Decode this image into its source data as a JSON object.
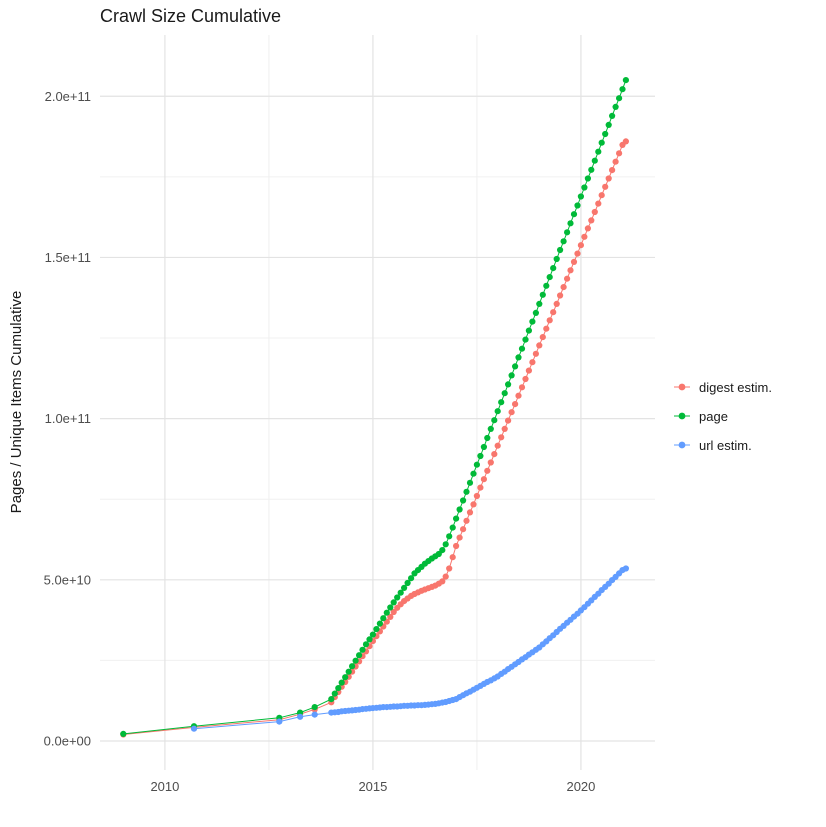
{
  "chart": {
    "title": "Crawl Size Cumulative",
    "ylabel": "Pages / Unique Items Cumulative",
    "xlabel": ""
  },
  "chart_data": {
    "type": "scatter",
    "note": "cumulative crawl size over time; y values stored in units of 1e9 items",
    "grid": true,
    "legend_position": "right",
    "xlim": [
      2008.44,
      2021.78
    ],
    "ylim_e9": [
      -9,
      219
    ],
    "x_ticks": [
      {
        "v": 2010,
        "label": "2010"
      },
      {
        "v": 2015,
        "label": "2015"
      },
      {
        "v": 2020,
        "label": "2020"
      }
    ],
    "x_minor": [
      2012.5,
      2017.5
    ],
    "y_ticks": [
      {
        "v": 0,
        "label": "0.0e+00"
      },
      {
        "v": 50,
        "label": "5.0e+10"
      },
      {
        "v": 100,
        "label": "1.0e+11"
      },
      {
        "v": 150,
        "label": "1.5e+11"
      },
      {
        "v": 200,
        "label": "2.0e+11"
      }
    ],
    "y_minor": [
      25,
      75,
      125,
      175
    ],
    "series": [
      {
        "id": "digest-estim",
        "name": "digest estim.",
        "color": "#F8766D",
        "points": [
          [
            2009.0,
            2.0
          ],
          [
            2010.7,
            4.2
          ],
          [
            2012.75,
            6.6
          ],
          [
            2013.25,
            8.3
          ],
          [
            2013.6,
            9.8
          ],
          [
            2014.0,
            12.0
          ],
          [
            2014.083,
            13.6
          ],
          [
            2014.167,
            15.2
          ],
          [
            2014.25,
            16.8
          ],
          [
            2014.333,
            18.3
          ],
          [
            2014.417,
            19.9
          ],
          [
            2014.5,
            21.5
          ],
          [
            2014.583,
            23.1
          ],
          [
            2014.667,
            24.7
          ],
          [
            2014.75,
            26.3
          ],
          [
            2014.833,
            27.8
          ],
          [
            2014.917,
            29.4
          ],
          [
            2015.0,
            31.0
          ],
          [
            2015.083,
            32.5
          ],
          [
            2015.167,
            34.0
          ],
          [
            2015.25,
            35.5
          ],
          [
            2015.333,
            37.0
          ],
          [
            2015.417,
            38.5
          ],
          [
            2015.5,
            40.0
          ],
          [
            2015.583,
            41.3
          ],
          [
            2015.667,
            42.4
          ],
          [
            2015.75,
            43.4
          ],
          [
            2015.833,
            44.2
          ],
          [
            2015.917,
            45.0
          ],
          [
            2016.0,
            45.6
          ],
          [
            2016.083,
            46.1
          ],
          [
            2016.167,
            46.6
          ],
          [
            2016.25,
            47.0
          ],
          [
            2016.333,
            47.4
          ],
          [
            2016.417,
            47.8
          ],
          [
            2016.5,
            48.2
          ],
          [
            2016.583,
            48.8
          ],
          [
            2016.667,
            49.5
          ],
          [
            2016.75,
            51.0
          ],
          [
            2016.833,
            53.5
          ],
          [
            2016.917,
            57.0
          ],
          [
            2017.0,
            60.5
          ],
          [
            2017.083,
            63.1
          ],
          [
            2017.167,
            65.7
          ],
          [
            2017.25,
            68.3
          ],
          [
            2017.333,
            70.9
          ],
          [
            2017.417,
            73.4
          ],
          [
            2017.5,
            76.0
          ],
          [
            2017.583,
            78.6
          ],
          [
            2017.667,
            81.2
          ],
          [
            2017.75,
            83.8
          ],
          [
            2017.833,
            86.4
          ],
          [
            2017.917,
            89.0
          ],
          [
            2018.0,
            91.6
          ],
          [
            2018.083,
            94.2
          ],
          [
            2018.167,
            96.8
          ],
          [
            2018.25,
            99.4
          ],
          [
            2018.333,
            102.0
          ],
          [
            2018.417,
            104.5
          ],
          [
            2018.5,
            107.1
          ],
          [
            2018.583,
            109.7
          ],
          [
            2018.667,
            112.3
          ],
          [
            2018.75,
            114.9
          ],
          [
            2018.833,
            117.5
          ],
          [
            2018.917,
            120.1
          ],
          [
            2019.0,
            122.7
          ],
          [
            2019.083,
            125.3
          ],
          [
            2019.167,
            127.9
          ],
          [
            2019.25,
            130.5
          ],
          [
            2019.333,
            133.0
          ],
          [
            2019.417,
            135.6
          ],
          [
            2019.5,
            138.2
          ],
          [
            2019.583,
            140.8
          ],
          [
            2019.667,
            143.4
          ],
          [
            2019.75,
            146.0
          ],
          [
            2019.833,
            148.6
          ],
          [
            2019.917,
            151.2
          ],
          [
            2020.0,
            153.8
          ],
          [
            2020.083,
            156.4
          ],
          [
            2020.167,
            159.0
          ],
          [
            2020.25,
            161.5
          ],
          [
            2020.333,
            164.1
          ],
          [
            2020.417,
            166.7
          ],
          [
            2020.5,
            169.3
          ],
          [
            2020.583,
            171.9
          ],
          [
            2020.667,
            174.5
          ],
          [
            2020.75,
            177.1
          ],
          [
            2020.833,
            179.7
          ],
          [
            2020.917,
            182.3
          ],
          [
            2021.0,
            184.9
          ],
          [
            2021.08,
            186.0
          ]
        ]
      },
      {
        "id": "page",
        "name": "page",
        "color": "#00BA38",
        "points": [
          [
            2009.0,
            2.2
          ],
          [
            2010.7,
            4.6
          ],
          [
            2012.75,
            7.2
          ],
          [
            2013.25,
            8.8
          ],
          [
            2013.6,
            10.5
          ],
          [
            2014.0,
            13.0
          ],
          [
            2014.083,
            14.7
          ],
          [
            2014.167,
            16.4
          ],
          [
            2014.25,
            18.1
          ],
          [
            2014.333,
            19.8
          ],
          [
            2014.417,
            21.5
          ],
          [
            2014.5,
            23.2
          ],
          [
            2014.583,
            24.9
          ],
          [
            2014.667,
            26.6
          ],
          [
            2014.75,
            28.3
          ],
          [
            2014.833,
            30.0
          ],
          [
            2014.917,
            31.5
          ],
          [
            2015.0,
            33.0
          ],
          [
            2015.083,
            34.7
          ],
          [
            2015.167,
            36.4
          ],
          [
            2015.25,
            38.1
          ],
          [
            2015.333,
            39.8
          ],
          [
            2015.417,
            41.4
          ],
          [
            2015.5,
            43.0
          ],
          [
            2015.583,
            44.5
          ],
          [
            2015.667,
            46.0
          ],
          [
            2015.75,
            47.5
          ],
          [
            2015.833,
            49.0
          ],
          [
            2015.917,
            50.5
          ],
          [
            2016.0,
            52.0
          ],
          [
            2016.083,
            53.0
          ],
          [
            2016.167,
            54.0
          ],
          [
            2016.25,
            55.0
          ],
          [
            2016.333,
            55.8
          ],
          [
            2016.417,
            56.6
          ],
          [
            2016.5,
            57.3
          ],
          [
            2016.583,
            58.0
          ],
          [
            2016.667,
            59.2
          ],
          [
            2016.75,
            61.0
          ],
          [
            2016.833,
            63.5
          ],
          [
            2016.917,
            66.2
          ],
          [
            2017.0,
            69.0
          ],
          [
            2017.083,
            71.8
          ],
          [
            2017.167,
            74.6
          ],
          [
            2017.25,
            77.3
          ],
          [
            2017.333,
            80.1
          ],
          [
            2017.417,
            82.9
          ],
          [
            2017.5,
            85.7
          ],
          [
            2017.583,
            88.4
          ],
          [
            2017.667,
            91.2
          ],
          [
            2017.75,
            94.0
          ],
          [
            2017.833,
            96.8
          ],
          [
            2017.917,
            99.5
          ],
          [
            2018.0,
            102.3
          ],
          [
            2018.083,
            105.1
          ],
          [
            2018.167,
            107.9
          ],
          [
            2018.25,
            110.6
          ],
          [
            2018.333,
            113.4
          ],
          [
            2018.417,
            116.2
          ],
          [
            2018.5,
            119.0
          ],
          [
            2018.583,
            121.7
          ],
          [
            2018.667,
            124.5
          ],
          [
            2018.75,
            127.3
          ],
          [
            2018.833,
            130.1
          ],
          [
            2018.917,
            132.8
          ],
          [
            2019.0,
            135.6
          ],
          [
            2019.083,
            138.4
          ],
          [
            2019.167,
            141.2
          ],
          [
            2019.25,
            143.9
          ],
          [
            2019.333,
            146.7
          ],
          [
            2019.417,
            149.5
          ],
          [
            2019.5,
            152.3
          ],
          [
            2019.583,
            155.0
          ],
          [
            2019.667,
            157.8
          ],
          [
            2019.75,
            160.6
          ],
          [
            2019.833,
            163.4
          ],
          [
            2019.917,
            166.1
          ],
          [
            2020.0,
            168.9
          ],
          [
            2020.083,
            171.7
          ],
          [
            2020.167,
            174.5
          ],
          [
            2020.25,
            177.2
          ],
          [
            2020.333,
            180.0
          ],
          [
            2020.417,
            182.8
          ],
          [
            2020.5,
            185.6
          ],
          [
            2020.583,
            188.3
          ],
          [
            2020.667,
            191.1
          ],
          [
            2020.75,
            193.9
          ],
          [
            2020.833,
            196.7
          ],
          [
            2020.917,
            199.4
          ],
          [
            2021.0,
            202.2
          ],
          [
            2021.08,
            205.0
          ]
        ]
      },
      {
        "id": "url-estim",
        "name": "url estim.",
        "color": "#619CFF",
        "points": [
          [
            2010.7,
            3.8
          ],
          [
            2012.75,
            6.0
          ],
          [
            2013.25,
            7.5
          ],
          [
            2013.6,
            8.2
          ],
          [
            2014.0,
            8.8
          ],
          [
            2014.083,
            8.9
          ],
          [
            2014.167,
            9.0
          ],
          [
            2014.25,
            9.2
          ],
          [
            2014.333,
            9.3
          ],
          [
            2014.417,
            9.4
          ],
          [
            2014.5,
            9.5
          ],
          [
            2014.583,
            9.6
          ],
          [
            2014.667,
            9.7
          ],
          [
            2014.75,
            9.9
          ],
          [
            2014.833,
            10.0
          ],
          [
            2014.917,
            10.1
          ],
          [
            2015.0,
            10.2
          ],
          [
            2015.083,
            10.3
          ],
          [
            2015.167,
            10.4
          ],
          [
            2015.25,
            10.5
          ],
          [
            2015.333,
            10.5
          ],
          [
            2015.417,
            10.6
          ],
          [
            2015.5,
            10.7
          ],
          [
            2015.583,
            10.7
          ],
          [
            2015.667,
            10.8
          ],
          [
            2015.75,
            10.9
          ],
          [
            2015.833,
            10.9
          ],
          [
            2015.917,
            11.0
          ],
          [
            2016.0,
            11.0
          ],
          [
            2016.083,
            11.1
          ],
          [
            2016.167,
            11.1
          ],
          [
            2016.25,
            11.2
          ],
          [
            2016.333,
            11.3
          ],
          [
            2016.417,
            11.4
          ],
          [
            2016.5,
            11.5
          ],
          [
            2016.583,
            11.7
          ],
          [
            2016.667,
            11.9
          ],
          [
            2016.75,
            12.1
          ],
          [
            2016.833,
            12.4
          ],
          [
            2016.917,
            12.7
          ],
          [
            2017.0,
            13.0
          ],
          [
            2017.083,
            13.6
          ],
          [
            2017.167,
            14.2
          ],
          [
            2017.25,
            14.8
          ],
          [
            2017.333,
            15.3
          ],
          [
            2017.417,
            15.9
          ],
          [
            2017.5,
            16.5
          ],
          [
            2017.583,
            17.1
          ],
          [
            2017.667,
            17.7
          ],
          [
            2017.75,
            18.3
          ],
          [
            2017.833,
            18.8
          ],
          [
            2017.917,
            19.4
          ],
          [
            2018.0,
            20.0
          ],
          [
            2018.083,
            20.8
          ],
          [
            2018.167,
            21.5
          ],
          [
            2018.25,
            22.3
          ],
          [
            2018.333,
            23.0
          ],
          [
            2018.417,
            23.8
          ],
          [
            2018.5,
            24.5
          ],
          [
            2018.583,
            25.3
          ],
          [
            2018.667,
            26.0
          ],
          [
            2018.75,
            26.8
          ],
          [
            2018.833,
            27.5
          ],
          [
            2018.917,
            28.3
          ],
          [
            2019.0,
            29.0
          ],
          [
            2019.083,
            30.0
          ],
          [
            2019.167,
            30.9
          ],
          [
            2019.25,
            31.9
          ],
          [
            2019.333,
            32.8
          ],
          [
            2019.417,
            33.8
          ],
          [
            2019.5,
            34.8
          ],
          [
            2019.583,
            35.7
          ],
          [
            2019.667,
            36.7
          ],
          [
            2019.75,
            37.6
          ],
          [
            2019.833,
            38.6
          ],
          [
            2019.917,
            39.5
          ],
          [
            2020.0,
            40.5
          ],
          [
            2020.083,
            41.5
          ],
          [
            2020.167,
            42.6
          ],
          [
            2020.25,
            43.6
          ],
          [
            2020.333,
            44.7
          ],
          [
            2020.417,
            45.7
          ],
          [
            2020.5,
            46.8
          ],
          [
            2020.583,
            47.8
          ],
          [
            2020.667,
            48.8
          ],
          [
            2020.75,
            49.9
          ],
          [
            2020.833,
            50.9
          ],
          [
            2020.917,
            52.0
          ],
          [
            2021.0,
            53.0
          ],
          [
            2021.08,
            53.5
          ]
        ]
      }
    ]
  }
}
